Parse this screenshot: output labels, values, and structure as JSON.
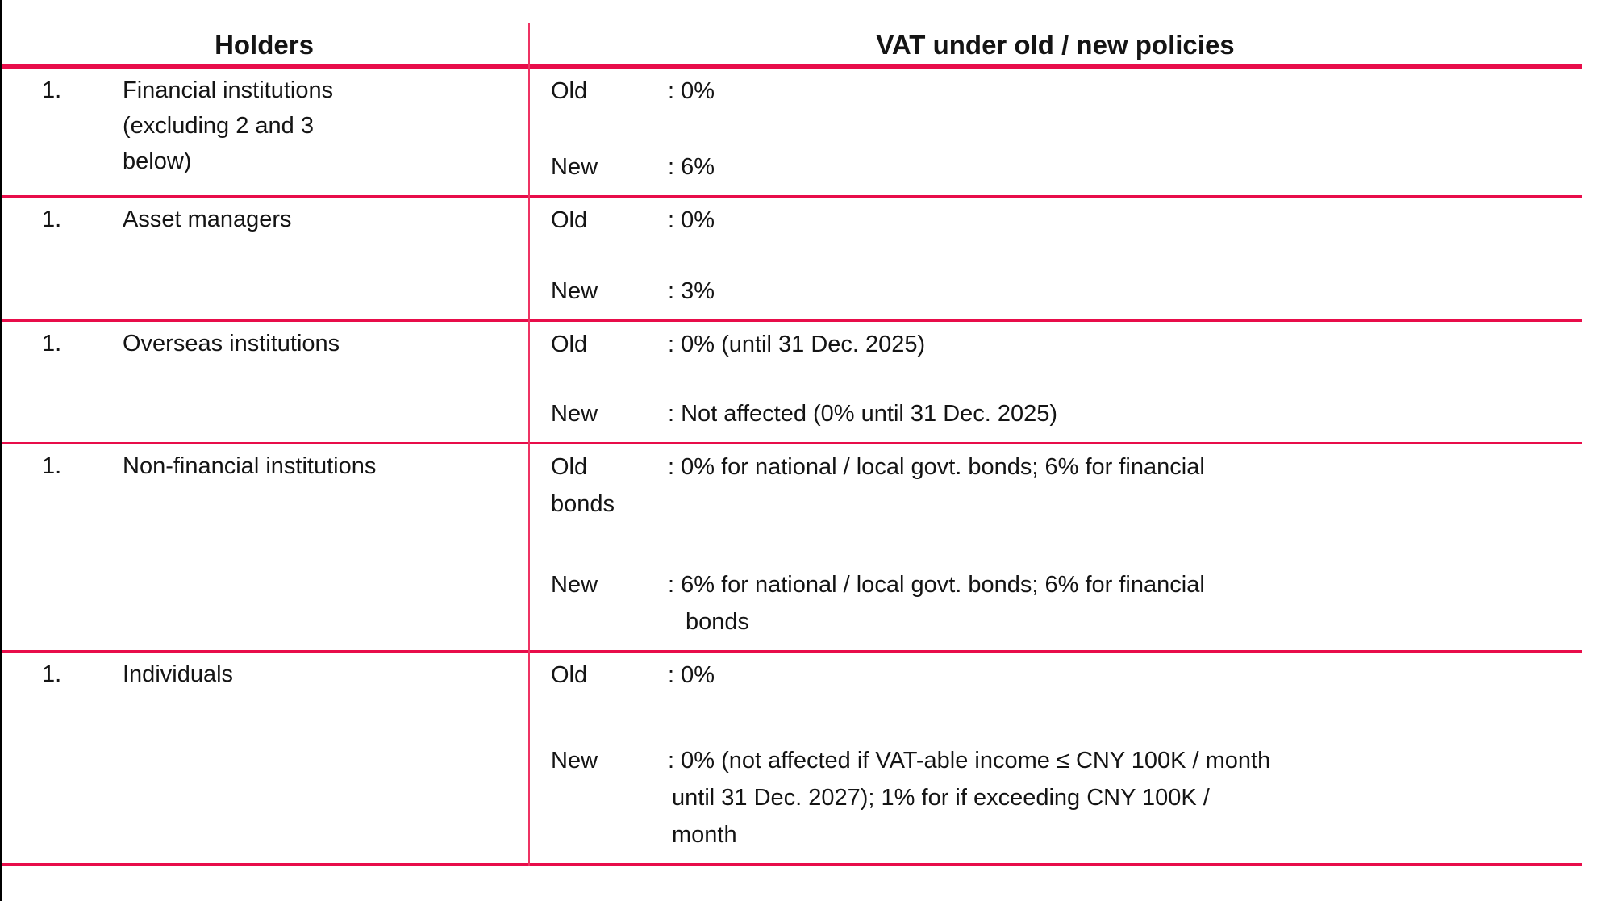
{
  "header": {
    "holders": "Holders",
    "vat": "VAT under old / new policies"
  },
  "labels": {
    "old": "Old",
    "new": "New"
  },
  "rows": [
    {
      "num": "1.",
      "holder_lines": [
        "Financial institutions",
        "(excluding 2 and 3",
        "below)"
      ],
      "old_lines": [
        ": 0%"
      ],
      "new_lines": [
        ": 6%"
      ]
    },
    {
      "num": "1.",
      "holder_lines": [
        "Asset managers"
      ],
      "old_lines": [
        ": 0%"
      ],
      "new_lines": [
        ": 3%"
      ]
    },
    {
      "num": "1.",
      "holder_lines": [
        "Overseas institutions"
      ],
      "old_lines": [
        ": 0% (until 31 Dec. 2025)"
      ],
      "new_lines": [
        ": Not affected (0% until 31 Dec. 2025)"
      ]
    },
    {
      "num": "1.",
      "holder_lines": [
        "Non-financial institutions"
      ],
      "old_lines": [
        ": 0% for national / local govt. bonds; 6% for financial",
        "bonds"
      ],
      "new_lines": [
        ": 6% for national / local govt. bonds; 6% for financial",
        "bonds"
      ]
    },
    {
      "num": "1.",
      "holder_lines": [
        "Individuals"
      ],
      "old_lines": [
        ": 0%"
      ],
      "new_lines": [
        ": 0% (not affected if VAT-able income ≤ CNY 100K / month",
        "until 31 Dec. 2027); 1% for if exceeding CNY 100K /",
        "month"
      ]
    }
  ],
  "colors": {
    "accent_red": "#e80d4a",
    "divider_red": "#ee3363",
    "border_black": "#000000"
  }
}
